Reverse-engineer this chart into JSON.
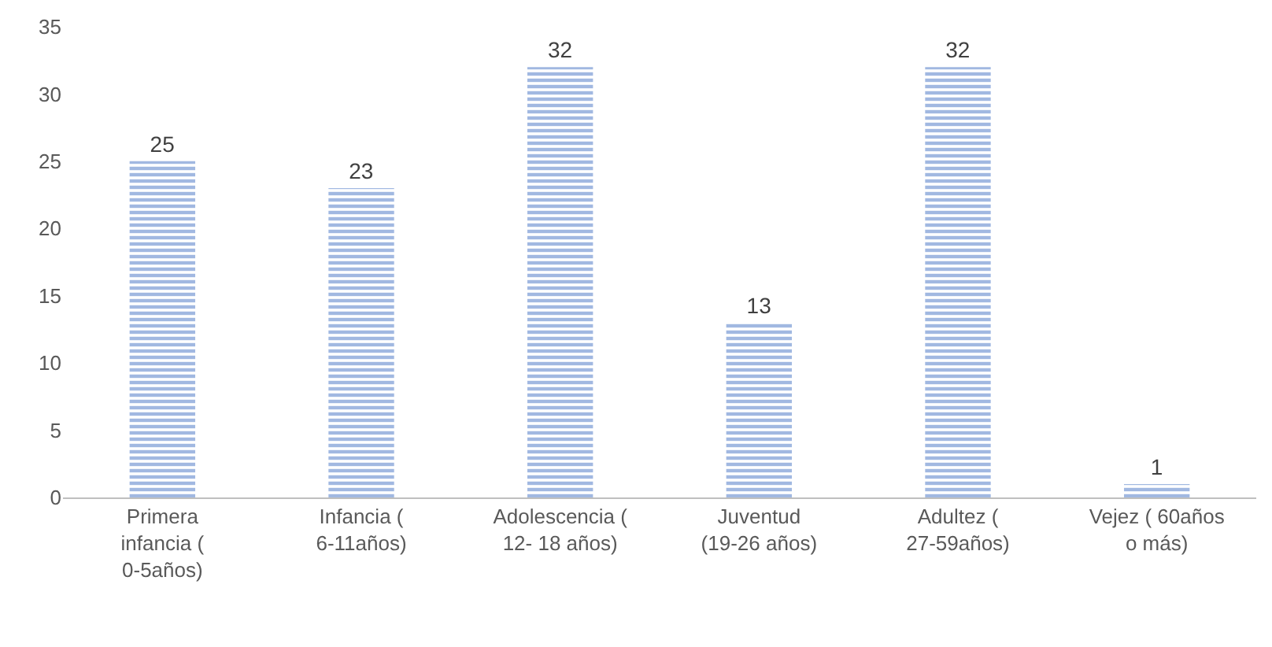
{
  "chart_data": {
    "type": "bar",
    "categories": [
      "Primera infancia ( 0-5años)",
      "Infancia ( 6-11años)",
      "Adolescencia ( 12- 18 años)",
      "Juventud (19-26 años)",
      "Adultez ( 27-59años)",
      "Vejez ( 60años o más)"
    ],
    "values": [
      25,
      23,
      32,
      13,
      32,
      1
    ],
    "color": "#4472c4",
    "ylim": [
      0,
      35
    ],
    "yticks": [
      0,
      5,
      10,
      15,
      20,
      25,
      30,
      35
    ],
    "grid": false,
    "legend": false,
    "data_labels": true
  }
}
